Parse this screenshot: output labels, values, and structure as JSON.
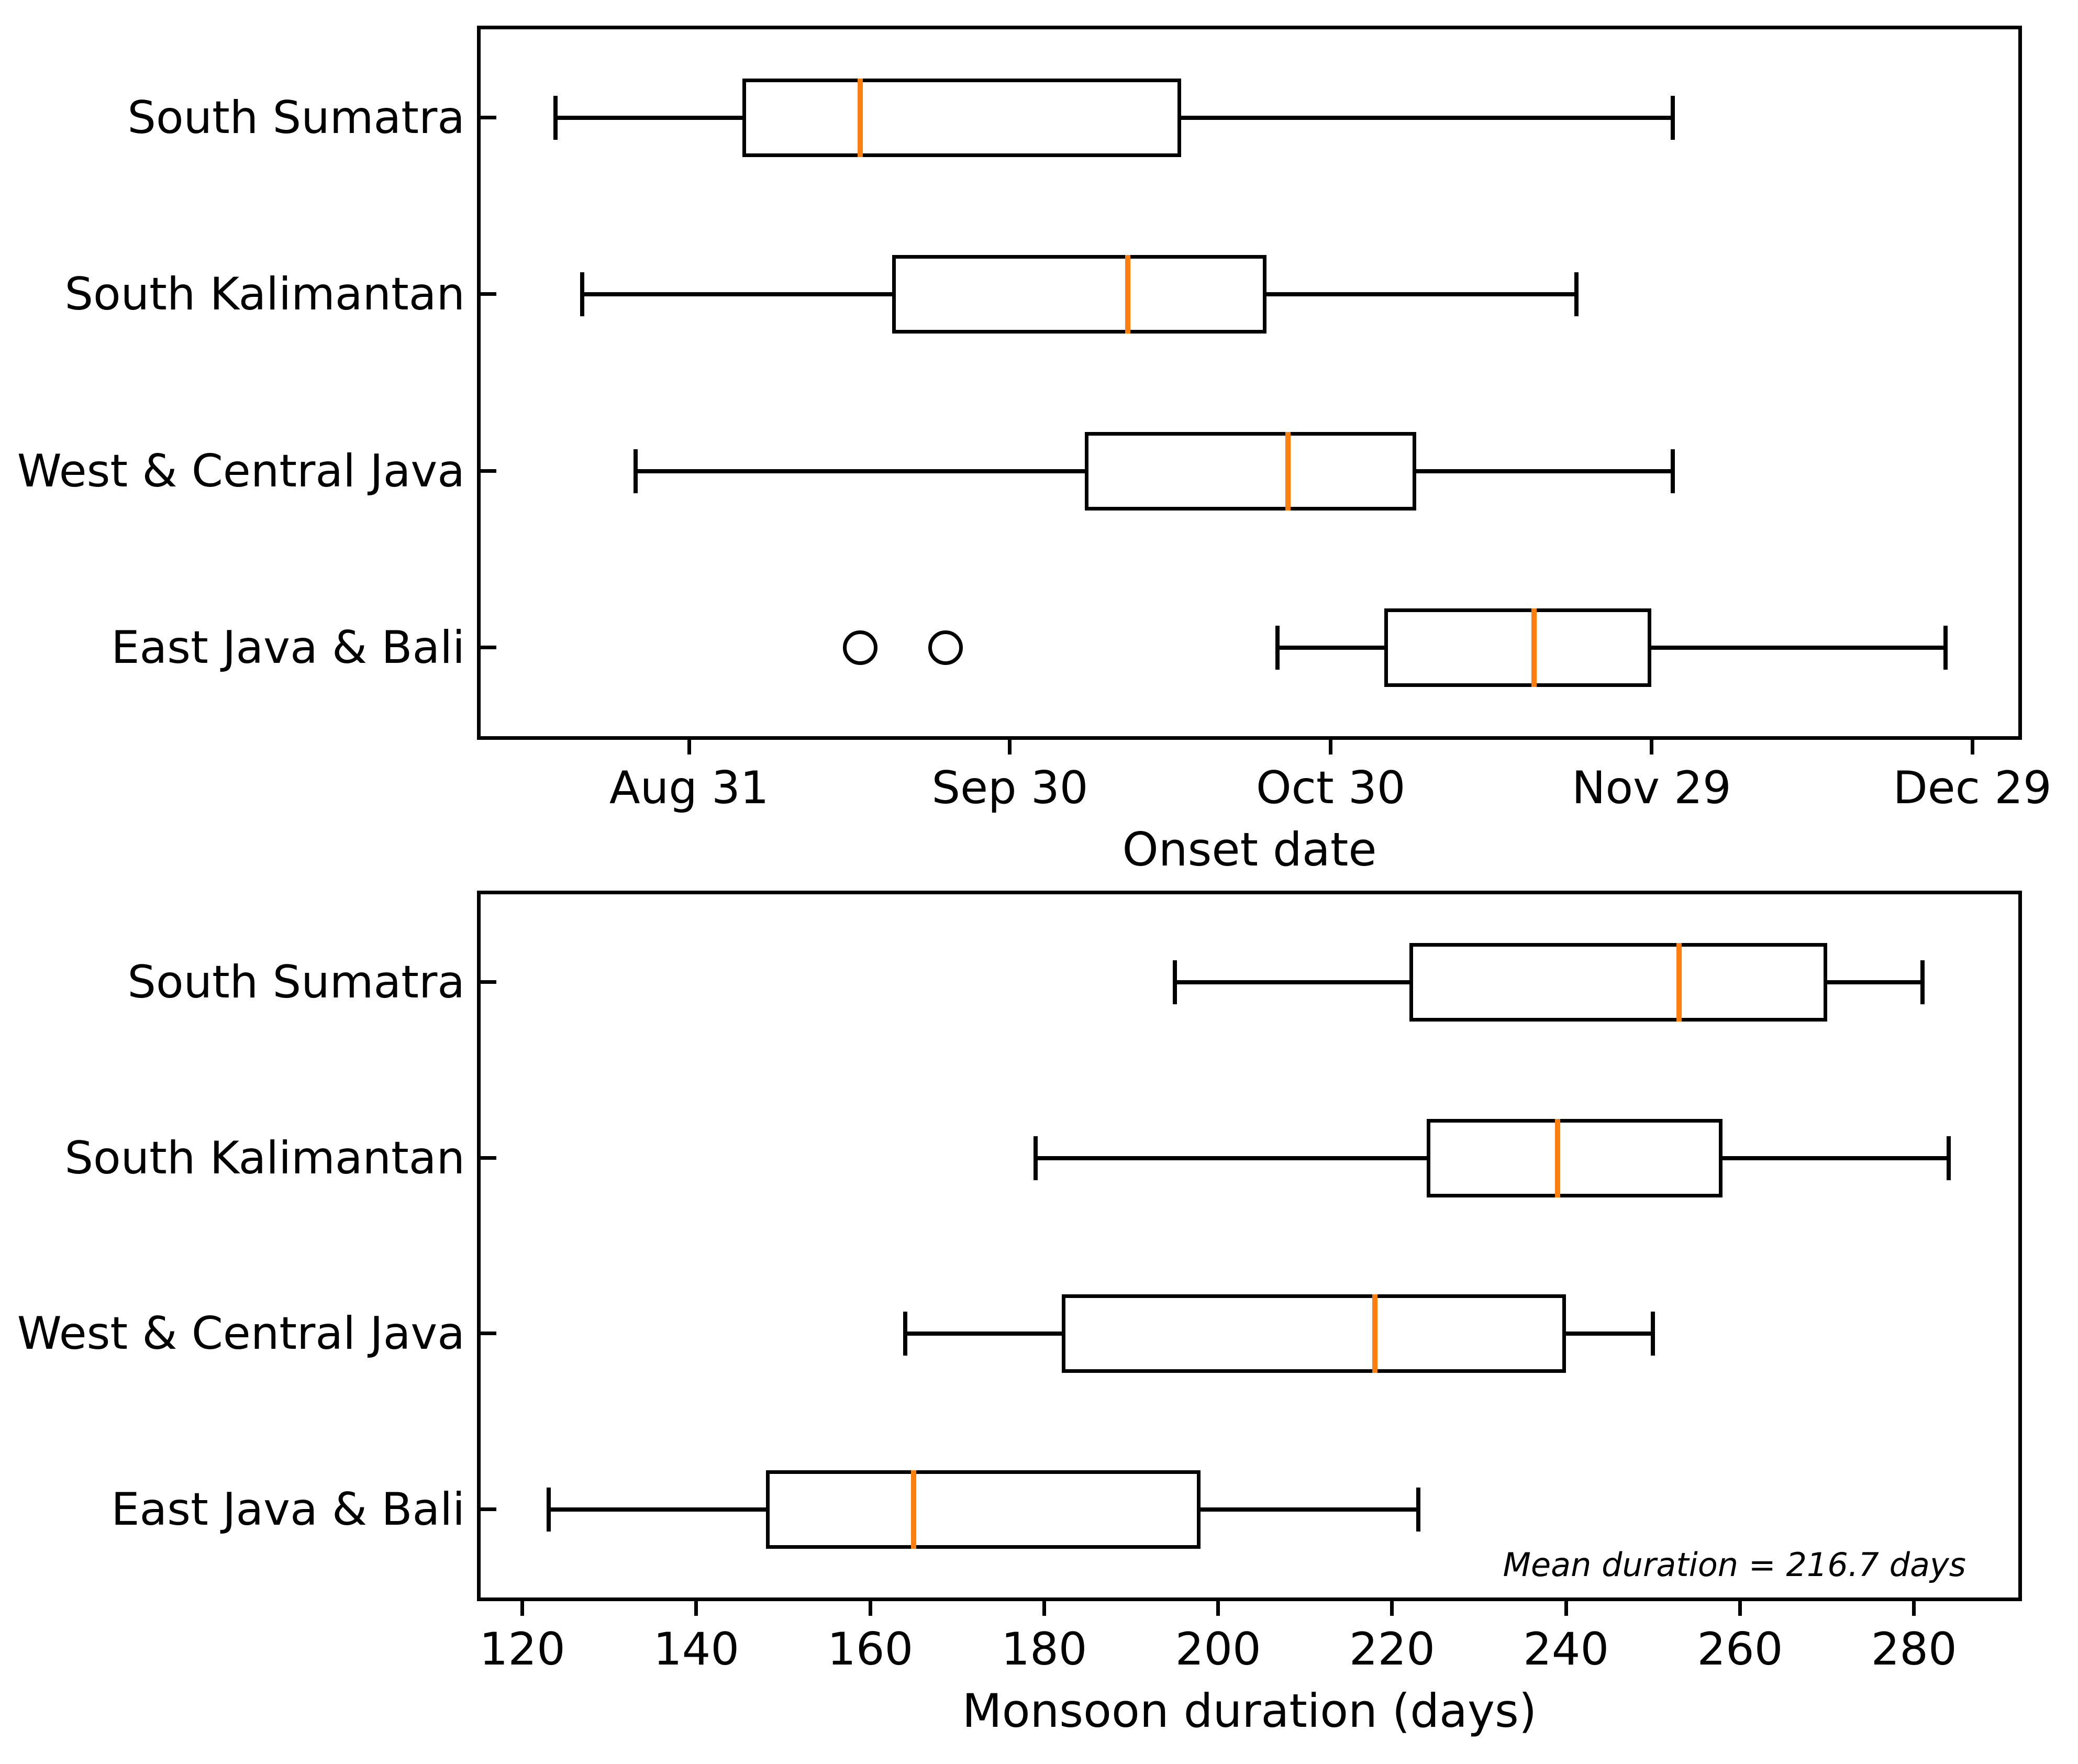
{
  "figure": {
    "background_color": "#ffffff",
    "text_color": "#000000"
  },
  "categories": [
    "South Sumatra",
    "South Kalimantan",
    "West & Central Java",
    "East Java & Bali"
  ],
  "chart_data": [
    {
      "type": "boxplot",
      "orientation": "horizontal",
      "panel": "top",
      "xlabel": "Onset date",
      "x_unit": "days since Aug 1",
      "xlim": [
        10.5,
        154.3
      ],
      "grid": false,
      "ticks": [
        {
          "v": 30,
          "label": "Aug 31"
        },
        {
          "v": 60,
          "label": "Sep 30"
        },
        {
          "v": 90,
          "label": "Oct 30"
        },
        {
          "v": 120,
          "label": "Nov 29"
        },
        {
          "v": 150,
          "label": "Dec 29"
        }
      ],
      "categories": [
        "South Sumatra",
        "South Kalimantan",
        "West & Central Java",
        "East Java & Bali"
      ],
      "median_color": "#ff7f0e",
      "box_color": "#000000",
      "series": [
        {
          "category": "South Sumatra",
          "whisker_low": 17.5,
          "q1": 35,
          "median": 46,
          "q3": 76,
          "whisker_high": 122,
          "outliers": [],
          "date_labels": {
            "whisker_low": "Aug 18",
            "q1": "Sep 5",
            "median": "Sep 16",
            "q3": "Oct 16",
            "whisker_high": "Dec 1"
          }
        },
        {
          "category": "South Kalimantan",
          "whisker_low": 20,
          "q1": 49,
          "median": 71,
          "q3": 84,
          "whisker_high": 113,
          "outliers": [],
          "date_labels": {
            "whisker_low": "Aug 21",
            "q1": "Sep 19",
            "median": "Oct 11",
            "q3": "Oct 24",
            "whisker_high": "Nov 22"
          }
        },
        {
          "category": "West & Central Java",
          "whisker_low": 25,
          "q1": 67,
          "median": 86,
          "q3": 98,
          "whisker_high": 122,
          "outliers": [],
          "date_labels": {
            "whisker_low": "Aug 26",
            "q1": "Oct 7",
            "median": "Oct 26",
            "q3": "Nov 7",
            "whisker_high": "Dec 1"
          }
        },
        {
          "category": "East Java & Bali",
          "whisker_low": 85,
          "q1": 95,
          "median": 109,
          "q3": 120,
          "whisker_high": 147.5,
          "outliers": [
            46,
            54
          ],
          "outlier_date_labels": [
            "Sep 16",
            "Sep 24"
          ],
          "date_labels": {
            "whisker_low": "Oct 25",
            "q1": "Nov 4",
            "median": "Nov 18",
            "q3": "Nov 29",
            "whisker_high": "Dec 27"
          }
        }
      ]
    },
    {
      "type": "boxplot",
      "orientation": "horizontal",
      "panel": "bottom",
      "xlabel": "Monsoon duration (days)",
      "x_unit": "days",
      "xlim": [
        115.2,
        292
      ],
      "grid": false,
      "ticks": [
        {
          "v": 120,
          "label": "120"
        },
        {
          "v": 140,
          "label": "140"
        },
        {
          "v": 160,
          "label": "160"
        },
        {
          "v": 180,
          "label": "180"
        },
        {
          "v": 200,
          "label": "200"
        },
        {
          "v": 220,
          "label": "220"
        },
        {
          "v": 240,
          "label": "240"
        },
        {
          "v": 260,
          "label": "260"
        },
        {
          "v": 280,
          "label": "280"
        }
      ],
      "categories": [
        "South Sumatra",
        "South Kalimantan",
        "West & Central Java",
        "East Java & Bali"
      ],
      "median_color": "#ff7f0e",
      "box_color": "#000000",
      "annotation": "Mean duration = 216.7 days",
      "series": [
        {
          "category": "South Sumatra",
          "whisker_low": 195,
          "q1": 222,
          "median": 253,
          "q3": 270,
          "whisker_high": 281,
          "outliers": []
        },
        {
          "category": "South Kalimantan",
          "whisker_low": 179,
          "q1": 224,
          "median": 239,
          "q3": 258,
          "whisker_high": 284,
          "outliers": []
        },
        {
          "category": "West & Central Java",
          "whisker_low": 164,
          "q1": 182,
          "median": 218,
          "q3": 240,
          "whisker_high": 250,
          "outliers": []
        },
        {
          "category": "East Java & Bali",
          "whisker_low": 123,
          "q1": 148,
          "median": 165,
          "q3": 198,
          "whisker_high": 223,
          "outliers": []
        }
      ]
    }
  ]
}
